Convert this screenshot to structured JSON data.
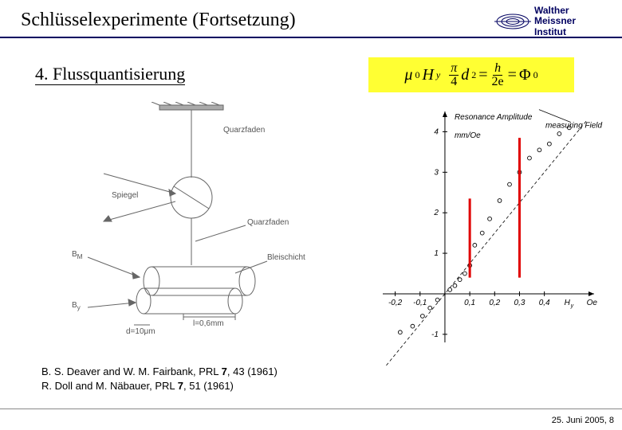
{
  "header": {
    "title": "Schlüsselexperimente (Fortsetzung)",
    "logo": {
      "line1": "Walther",
      "line2": "Meissner",
      "line3": "Institut",
      "color": "#000060"
    }
  },
  "subsection": "4. Flussquantisierung",
  "equation": {
    "mu": "μ",
    "sub0": "0",
    "H": "H",
    "suby": "y",
    "pi": "π",
    "four": "4",
    "d": "d",
    "sq": "2",
    "h": "h",
    "two_e": "2e",
    "eq": "=",
    "phi": "Φ",
    "phi0": "0",
    "bg": "#ffff33"
  },
  "diagram_left": {
    "labels": {
      "quarzfaden_top": "Quarzfaden",
      "spiegel": "Spiegel",
      "quarzfaden_side": "Quarzfaden",
      "bm": "B_M",
      "bleischicht": "Bleischicht",
      "by": "B_y",
      "length": "l=0,6mm",
      "diameter": "d=10μm"
    },
    "stroke": "#666666"
  },
  "diagram_right": {
    "type": "scatter-step",
    "title_lines": [
      "Resonance Amplitude",
      "measuring Field"
    ],
    "y_unit": "mm/Oe",
    "x_label": "H_y",
    "x_unit": "Oe",
    "xlim": [
      -0.25,
      0.6
    ],
    "ylim": [
      -1.2,
      4.5
    ],
    "xticks": [
      -0.2,
      -0.1,
      0,
      0.1,
      0.2,
      0.3,
      0.4
    ],
    "yticks": [
      -1,
      1,
      2,
      3,
      4
    ],
    "points": [
      [
        -0.18,
        -0.95
      ],
      [
        -0.13,
        -0.8
      ],
      [
        -0.09,
        -0.55
      ],
      [
        -0.06,
        -0.35
      ],
      [
        -0.03,
        -0.15
      ],
      [
        0.02,
        0.1
      ],
      [
        0.04,
        0.2
      ],
      [
        0.06,
        0.35
      ],
      [
        0.08,
        0.5
      ],
      [
        0.1,
        0.7
      ],
      [
        0.12,
        1.2
      ],
      [
        0.15,
        1.5
      ],
      [
        0.18,
        1.85
      ],
      [
        0.22,
        2.3
      ],
      [
        0.26,
        2.7
      ],
      [
        0.3,
        3.0
      ],
      [
        0.34,
        3.35
      ],
      [
        0.38,
        3.55
      ],
      [
        0.42,
        3.7
      ],
      [
        0.46,
        3.95
      ],
      [
        0.5,
        4.1
      ]
    ],
    "dashed_slope": 7.5,
    "red_markers_x": [
      0.1,
      0.3
    ],
    "axis_color": "#000000",
    "marker_fill": "none",
    "marker_stroke": "#000000",
    "marker_r": 2.4
  },
  "references": {
    "ref1_a": "B. S. Deaver and W. M. Fairbank, PRL ",
    "ref1_b": "7",
    "ref1_c": ", 43 (1961)",
    "ref2_a": "R. Doll and M. Näbauer, PRL ",
    "ref2_b": "7",
    "ref2_c": ", 51 (1961)"
  },
  "footer": {
    "text": "25. Juni 2005, 8"
  }
}
